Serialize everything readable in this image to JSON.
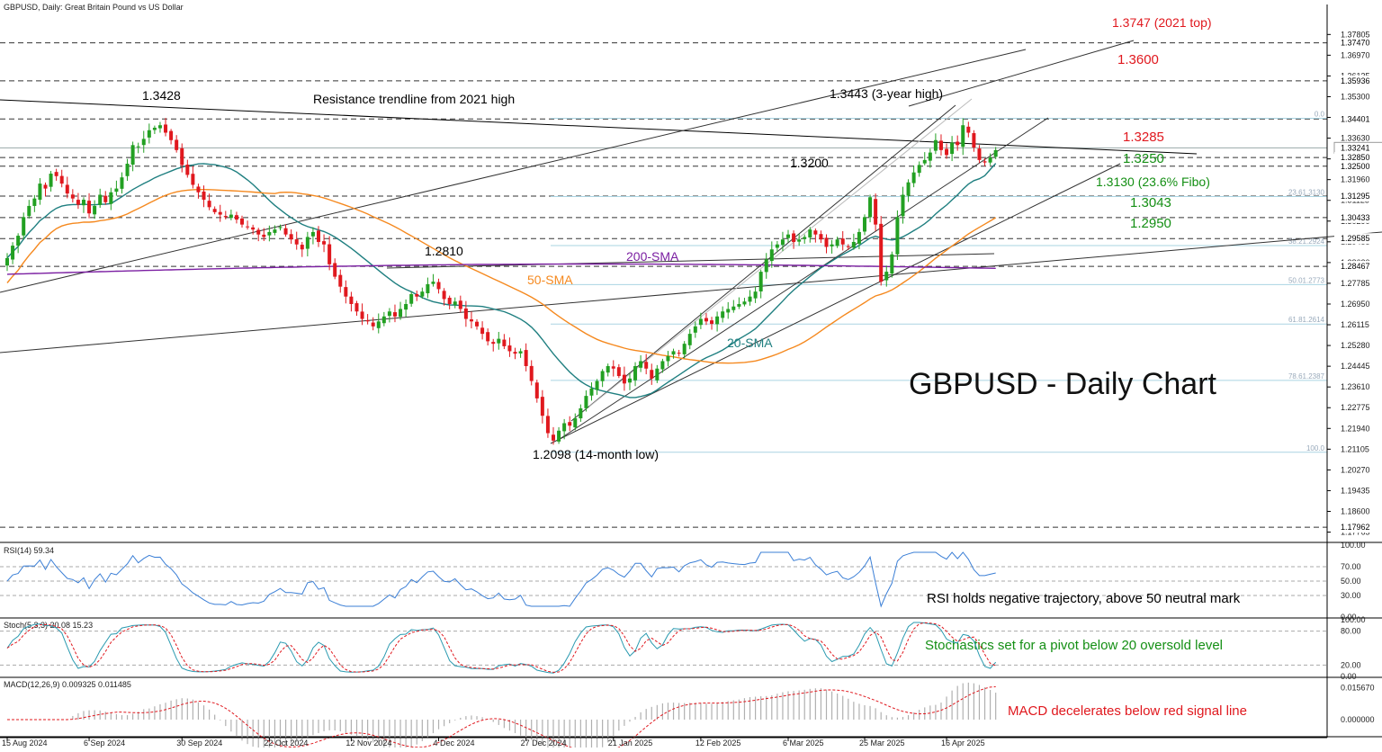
{
  "header": {
    "title": "GBPUSD, Daily:  Great Britain Pound vs US Dollar"
  },
  "chart_data": {
    "type": "candlestick",
    "symbol": "GBPUSD",
    "timeframe": "Daily",
    "watermark": "GBPUSD - Daily Chart",
    "price_axis": {
      "range": [
        1.1735,
        1.3865
      ],
      "ticks": [
        "1.37805",
        "1.36970",
        "1.36135",
        "1.35300",
        "1.34465",
        "1.33630",
        "1.32795",
        "1.31960",
        "1.31125",
        "1.30290",
        "1.29455",
        "1.28620",
        "1.27785",
        "1.26950",
        "1.26115",
        "1.25280",
        "1.24445",
        "1.23610",
        "1.22775",
        "1.21940",
        "1.21105",
        "1.20270",
        "1.19435",
        "1.18600",
        "1.17765"
      ],
      "tick_values": [
        1.37805,
        1.3697,
        1.36135,
        1.353,
        1.34465,
        1.3363,
        1.32795,
        1.3196,
        1.31125,
        1.3029,
        1.29455,
        1.2862,
        1.27785,
        1.2695,
        1.26115,
        1.2528,
        1.24445,
        1.2361,
        1.22775,
        1.2194,
        1.21105,
        1.2027,
        1.19435,
        1.186,
        1.17765
      ]
    },
    "date_labels": [
      {
        "label": "15 Aug 2024",
        "i": 0
      },
      {
        "label": "6 Sep 2024",
        "i": 15
      },
      {
        "label": "30 Sep 2024",
        "i": 32
      },
      {
        "label": "22 Oct 2024",
        "i": 48
      },
      {
        "label": "12 Nov 2024",
        "i": 63
      },
      {
        "label": "4 Dec 2024",
        "i": 79
      },
      {
        "label": "27 Dec 2024",
        "i": 95
      },
      {
        "label": "21 Jan 2025",
        "i": 111
      },
      {
        "label": "12 Feb 2025",
        "i": 127
      },
      {
        "label": "6 Mar 2025",
        "i": 143
      },
      {
        "label": "25 Mar 2025",
        "i": 157
      },
      {
        "label": "16 Apr 2025",
        "i": 172
      }
    ],
    "closes": [
      1.288,
      1.293,
      1.297,
      1.3045,
      1.309,
      1.312,
      1.318,
      1.316,
      1.322,
      1.321,
      1.318,
      1.314,
      1.312,
      1.3095,
      1.3115,
      1.306,
      1.309,
      1.3135,
      1.3105,
      1.3145,
      1.316,
      1.3205,
      1.326,
      1.3335,
      1.333,
      1.336,
      1.3395,
      1.3405,
      1.3415,
      1.3385,
      1.3355,
      1.3315,
      1.3255,
      1.3215,
      1.3175,
      1.3145,
      1.3115,
      1.3085,
      1.3065,
      1.3055,
      1.3045,
      1.3055,
      1.3035,
      1.3015,
      1.3005,
      1.2995,
      1.2975,
      1.2965,
      1.2985,
      1.2995,
      1.3005,
      1.2975,
      1.2955,
      1.2935,
      1.2915,
      1.2965,
      1.2985,
      1.2945,
      1.2935,
      1.2855,
      1.2805,
      1.2765,
      1.2725,
      1.2695,
      1.2665,
      1.2635,
      1.2625,
      1.2605,
      1.2625,
      1.2645,
      1.2665,
      1.2645,
      1.2675,
      1.2695,
      1.2735,
      1.2725,
      1.2745,
      1.2775,
      1.2785,
      1.2755,
      1.2715,
      1.2695,
      1.2705,
      1.2675,
      1.2635,
      1.2625,
      1.2605,
      1.2575,
      1.2545,
      1.2535,
      1.2555,
      1.2525,
      1.2505,
      1.2495,
      1.2505,
      1.2445,
      1.2385,
      1.2315,
      1.2245,
      1.2175,
      1.2145,
      1.2185,
      1.2215,
      1.2205,
      1.2235,
      1.2275,
      1.2325,
      1.2355,
      1.2385,
      1.2425,
      1.2445,
      1.2435,
      1.2405,
      1.2375,
      1.2395,
      1.2445,
      1.2465,
      1.2435,
      1.2395,
      1.2435,
      1.2465,
      1.2485,
      1.2505,
      1.2495,
      1.2535,
      1.2575,
      1.2605,
      1.2635,
      1.2625,
      1.2615,
      1.2645,
      1.2665,
      1.2675,
      1.2685,
      1.2695,
      1.2705,
      1.2725,
      1.2745,
      1.2825,
      1.2875,
      1.2915,
      1.2935,
      1.2955,
      1.2975,
      1.2945,
      1.2955,
      1.2965,
      1.2995,
      1.2975,
      1.2955,
      1.2925,
      1.2935,
      1.2955,
      1.2935,
      1.2925,
      1.2945,
      1.2985,
      1.3045,
      1.3125,
      1.3015,
      1.2785,
      1.2825,
      1.2895,
      1.3045,
      1.3135,
      1.3185,
      1.3225,
      1.3255,
      1.3275,
      1.3305,
      1.3355,
      1.3315,
      1.3295,
      1.3345,
      1.3335,
      1.3415,
      1.3385,
      1.3325,
      1.3275,
      1.3265,
      1.3285,
      1.3315
    ],
    "moving_averages": [
      {
        "label": "20-SMA",
        "color": "#1f7f80"
      },
      {
        "label": "50-SMA",
        "color": "#f5891f"
      },
      {
        "label": "200-SMA",
        "color": "#7b1fa2"
      }
    ],
    "price_tags": [
      {
        "label": "1.37470",
        "value": 1.3747
      },
      {
        "label": "1.35936",
        "value": 1.35936
      },
      {
        "label": "1.34401",
        "value": 1.34401
      },
      {
        "label": "1.33241",
        "value": 1.33241,
        "current": true
      },
      {
        "label": "1.32850",
        "value": 1.3285
      },
      {
        "label": "1.32500",
        "value": 1.325
      },
      {
        "label": "1.31295",
        "value": 1.31295
      },
      {
        "label": "1.30433",
        "value": 1.30433
      },
      {
        "label": "1.29585",
        "value": 1.29585
      },
      {
        "label": "1.28467",
        "value": 1.28467
      },
      {
        "label": "1.17962",
        "value": 1.17962
      }
    ],
    "dashed_levels": [
      1.3747,
      1.35936,
      1.34401,
      1.3285,
      1.325,
      1.31295,
      1.30433,
      1.29585,
      1.28467,
      1.17962
    ],
    "fibo_levels": [
      {
        "label": "0.0",
        "value": 1.3443
      },
      {
        "label": "23.61.3130",
        "value": 1.3128
      },
      {
        "label": "38.21.2924",
        "value": 1.29305
      },
      {
        "label": "50.01.2773",
        "value": 1.27735
      },
      {
        "label": "61.81.2614",
        "value": 1.26145
      },
      {
        "label": "78.61.2387",
        "value": 1.23875
      },
      {
        "label": "100.0",
        "value": 1.2098
      }
    ],
    "annotations": [
      {
        "text": "1.3428",
        "color": "#000000"
      },
      {
        "text": "Resistance trendline from 2021 high",
        "color": "#000000"
      },
      {
        "text": "1.3443 (3-year high)",
        "color": "#000000"
      },
      {
        "text": "1.3747 (2021 top)",
        "color": "#e0181e"
      },
      {
        "text": "1.3600",
        "color": "#e0181e"
      },
      {
        "text": "1.3285",
        "color": "#e0181e"
      },
      {
        "text": "1.3250",
        "color": "#148f14"
      },
      {
        "text": "1.3130 (23.6% Fibo)",
        "color": "#148f14"
      },
      {
        "text": "1.3043",
        "color": "#148f14"
      },
      {
        "text": "1.2950",
        "color": "#148f14"
      },
      {
        "text": "1.3200",
        "color": "#000000"
      },
      {
        "text": "1.2810",
        "color": "#000000"
      },
      {
        "text": "1.2098 (14-month low)",
        "color": "#000000"
      },
      {
        "text": "20-SMA",
        "color": "#1f7f80"
      },
      {
        "text": "50-SMA",
        "color": "#f5891f"
      },
      {
        "text": "200-SMA",
        "color": "#7b1fa2"
      }
    ],
    "indicators": {
      "rsi": {
        "header": "RSI(14) 59.34",
        "ticks": [
          "100.00",
          "70.00",
          "50.00",
          "30.00",
          "0.00"
        ],
        "tick_values": [
          100,
          70,
          50,
          30,
          0
        ],
        "levels": [
          70,
          50,
          30
        ],
        "note": "RSI holds negative trajectory, above 50 neutral mark",
        "note_color": "#000000"
      },
      "stoch": {
        "header": "Stoch(5,3,3) 20.08 15.23",
        "ticks": [
          "100.00",
          "80.00",
          "20.00",
          "0.00"
        ],
        "tick_values": [
          100,
          80,
          20,
          0
        ],
        "levels": [
          80,
          20
        ],
        "note": "Stochastics set for a pivot below 20 oversold level",
        "note_color": "#148f14"
      },
      "macd": {
        "header": "MACD(12,26,9) 0.009325 0.011485",
        "ticks": [
          "0.015670",
          "0.000000"
        ],
        "tick_values": [
          0.01567,
          0
        ],
        "note": "MACD decelerates below red signal line",
        "note_color": "#e0181e"
      }
    }
  }
}
